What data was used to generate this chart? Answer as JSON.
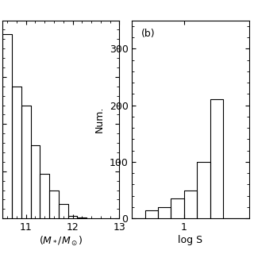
{
  "panel_a": {
    "bin_edges": [
      10.5,
      10.7,
      10.9,
      11.1,
      11.3,
      11.5,
      11.7,
      11.9,
      12.1,
      12.3
    ],
    "counts": [
      390,
      280,
      240,
      155,
      95,
      60,
      30,
      5,
      2
    ],
    "xlabel": "$(M_*/M_\\odot)$",
    "xlim": [
      10.5,
      13.0
    ],
    "ylim": [
      0,
      420
    ],
    "xticks": [
      11,
      12,
      13
    ]
  },
  "panel_b": {
    "bin_edges": [
      0.2,
      0.4,
      0.6,
      0.8,
      1.0,
      1.2,
      1.4,
      1.6,
      1.8,
      2.0
    ],
    "counts": [
      0,
      15,
      20,
      35,
      50,
      100,
      210,
      0,
      0
    ],
    "xlabel": "log S",
    "xlim": [
      0.2,
      2.0
    ],
    "ylim": [
      0,
      350
    ],
    "xticks": [
      1
    ],
    "label": "(b)"
  },
  "ylabel": "Num.",
  "yticks": [
    0,
    100,
    200,
    300
  ],
  "background_color": "#ffffff",
  "edge_color": "#000000",
  "linewidth": 0.8,
  "tick_direction": "in",
  "fontsize": 9
}
